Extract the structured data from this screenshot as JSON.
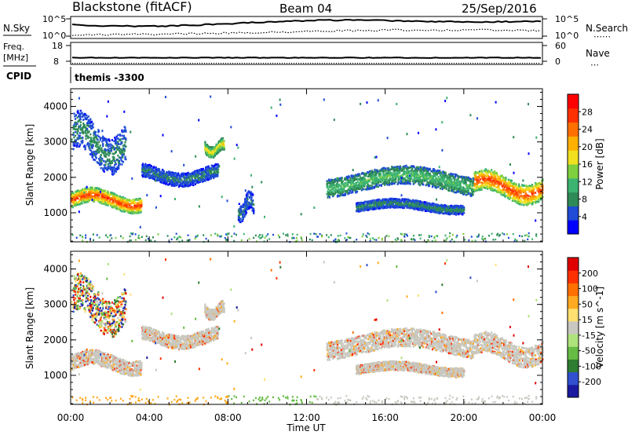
{
  "header": {
    "station": "Blackstone (fitACF)",
    "beam": "Beam 04",
    "date": "25/Sep/2016"
  },
  "side_labels": {
    "nsky": "N.Sky",
    "nsearch": "N.Search",
    "freq_line1": "Freq.",
    "freq_line2": "[MHz]",
    "cpid": "CPID",
    "nave": "Nave",
    "nsearch_dots": "⋯⋯",
    "nave_dots": "⋯"
  },
  "noise_axis": {
    "left_top": "10^5",
    "left_bottom": "10^0",
    "right_top": "10^5",
    "right_bottom": "10^0"
  },
  "freq_axis": {
    "left_top": "18",
    "left_bottom": "8",
    "right_top": "60",
    "right_bottom": "0"
  },
  "cpid_text": "themis  -3300",
  "chart_data": [
    {
      "type": "heatmap",
      "panel": "power",
      "ylabel": "Slant Range [km]",
      "ylim": [
        180,
        4500
      ],
      "yticks": [
        "1000",
        "2000",
        "3000",
        "4000"
      ],
      "xlim_hours": [
        0,
        24
      ],
      "colorbar_label": "Power [dB]",
      "colorbar_ticks": [
        "4",
        "8",
        "12",
        "16",
        "20",
        "24",
        "28"
      ],
      "colorbar_colors": [
        "#0000ff",
        "#1f4bd6",
        "#2e8b57",
        "#3cb371",
        "#7fcf3f",
        "#f0e020",
        "#ffb000",
        "#ff7000",
        "#ff3000",
        "#ff0000"
      ],
      "echo_bands": [
        {
          "t0": 0.0,
          "t1": 3.6,
          "r0": 1050,
          "r1": 1700,
          "peak": 26
        },
        {
          "t0": 0.1,
          "t1": 2.8,
          "r0": 2200,
          "r1": 3800,
          "peak": 8
        },
        {
          "t0": 3.6,
          "t1": 7.5,
          "r0": 1800,
          "r1": 2400,
          "peak": 7
        },
        {
          "t0": 6.8,
          "t1": 7.8,
          "r0": 2600,
          "r1": 3100,
          "peak": 18
        },
        {
          "t0": 8.5,
          "t1": 9.3,
          "r0": 800,
          "r1": 1600,
          "peak": 7
        },
        {
          "t0": 13.0,
          "t1": 20.5,
          "r0": 1500,
          "r1": 2300,
          "peak": 12
        },
        {
          "t0": 14.5,
          "t1": 20.0,
          "r0": 1000,
          "r1": 1400,
          "peak": 8
        },
        {
          "t0": 20.5,
          "t1": 24.0,
          "r0": 1300,
          "r1": 2200,
          "peak": 26
        }
      ]
    },
    {
      "type": "heatmap",
      "panel": "velocity",
      "ylabel": "Slant Range [km]",
      "ylim": [
        180,
        4500
      ],
      "yticks": [
        "1000",
        "2000",
        "3000",
        "4000"
      ],
      "xlim_hours": [
        0,
        24
      ],
      "xticks": [
        "00:00",
        "04:00",
        "08:00",
        "12:00",
        "16:00",
        "20:00",
        "00:00"
      ],
      "xlabel": "Time UT",
      "colorbar_label": "Velocity [m s^-1]",
      "colorbar_ticks": [
        "200",
        "100",
        "50",
        "15",
        "-15",
        "-50",
        "-100",
        "-200"
      ],
      "colorbar_colors": [
        "#1a1aa0",
        "#3050d0",
        "#2e7d32",
        "#66bb44",
        "#aee27a",
        "#c8c8c0",
        "#ffe070",
        "#ffaa20",
        "#ff7000",
        "#ff3000",
        "#e00000"
      ],
      "echo_bands": [
        {
          "t0": 0.0,
          "t1": 3.6,
          "r0": 1050,
          "r1": 1700,
          "color": "gray"
        },
        {
          "t0": 0.1,
          "t1": 2.8,
          "r0": 2200,
          "r1": 3800,
          "color": "mixed"
        },
        {
          "t0": 3.6,
          "t1": 7.5,
          "r0": 1800,
          "r1": 2400,
          "color": "gray"
        },
        {
          "t0": 6.8,
          "t1": 7.8,
          "r0": 2600,
          "r1": 3100,
          "color": "gray"
        },
        {
          "t0": 13.0,
          "t1": 20.5,
          "r0": 1500,
          "r1": 2300,
          "color": "gray"
        },
        {
          "t0": 14.5,
          "t1": 20.0,
          "r0": 1000,
          "r1": 1400,
          "color": "gray"
        },
        {
          "t0": 20.5,
          "t1": 24.0,
          "r0": 1300,
          "r1": 2200,
          "color": "gray"
        }
      ]
    }
  ]
}
